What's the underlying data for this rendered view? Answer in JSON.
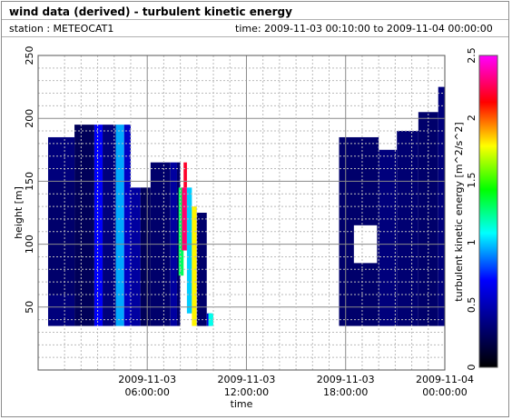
{
  "header": {
    "title": "wind data (derived) - turbulent kinetic energy",
    "station": "station : METEOCAT1",
    "time_range": "time: 2009-11-03 00:10:00 to 2009-11-04 00:00:00"
  },
  "chart_data": {
    "type": "heatmap",
    "xlabel": "time",
    "ylabel": "height [m]",
    "colorbar_label": "turbulent kinetic energy [m^2/s^2]",
    "x_range_hours": [
      -0.6,
      24
    ],
    "ylim": [
      0,
      250
    ],
    "grid": true,
    "x_ticks": [
      {
        "hour": 6,
        "label_date": "2009-11-03",
        "label_time": "06:00:00"
      },
      {
        "hour": 12,
        "label_date": "2009-11-03",
        "label_time": "12:00:00"
      },
      {
        "hour": 18,
        "label_date": "2009-11-03",
        "label_time": "18:00:00"
      },
      {
        "hour": 24,
        "label_date": "2009-11-04",
        "label_time": "00:00:00"
      }
    ],
    "y_ticks": [
      "50",
      "100",
      "150",
      "200",
      "250"
    ],
    "colorbar": {
      "range": [
        0,
        2.5
      ],
      "ticks": [
        "0",
        "0.5",
        "1",
        "1.5",
        "2",
        "2.5"
      ],
      "colormap": [
        "#000000",
        "#00007f",
        "#0000ff",
        "#00ffff",
        "#00ff00",
        "#ffff00",
        "#ff0000",
        "#ff00ff"
      ]
    },
    "cells": [
      {
        "t": [
          0.0,
          1.6
        ],
        "h": [
          35,
          185
        ],
        "v": 0.35
      },
      {
        "t": [
          0.0,
          1.6
        ],
        "h": [
          60,
          150
        ],
        "v": 0.3
      },
      {
        "t": [
          1.6,
          2.8
        ],
        "h": [
          35,
          195
        ],
        "v": 0.25
      },
      {
        "t": [
          2.8,
          3.3
        ],
        "h": [
          35,
          195
        ],
        "v": 0.7
      },
      {
        "t": [
          3.3,
          4.1
        ],
        "h": [
          35,
          195
        ],
        "v": 0.35
      },
      {
        "t": [
          4.1,
          4.6
        ],
        "h": [
          35,
          195
        ],
        "v": 0.95
      },
      {
        "t": [
          4.6,
          5.0
        ],
        "h": [
          35,
          195
        ],
        "v": 0.55
      },
      {
        "t": [
          5.0,
          5.6
        ],
        "h": [
          35,
          145
        ],
        "v": 0.45
      },
      {
        "t": [
          5.6,
          6.2
        ],
        "h": [
          35,
          145
        ],
        "v": 0.25
      },
      {
        "t": [
          6.2,
          7.4
        ],
        "h": [
          35,
          165
        ],
        "v": 0.3
      },
      {
        "t": [
          7.4,
          7.8
        ],
        "h": [
          35,
          165
        ],
        "v": 0.45
      },
      {
        "t": [
          7.8,
          8.0
        ],
        "h": [
          35,
          165
        ],
        "v": 0.3
      },
      {
        "t": [
          7.9,
          8.2
        ],
        "h": [
          75,
          145
        ],
        "v": 1.3
      },
      {
        "t": [
          8.1,
          8.4
        ],
        "h": [
          95,
          145
        ],
        "v": 2.3
      },
      {
        "t": [
          8.2,
          8.4
        ],
        "h": [
          145,
          165
        ],
        "v": 2.2
      },
      {
        "t": [
          8.4,
          8.7
        ],
        "h": [
          45,
          145
        ],
        "v": 1.0
      },
      {
        "t": [
          8.7,
          9.0
        ],
        "h": [
          35,
          130
        ],
        "v": 1.8
      },
      {
        "t": [
          9.0,
          9.6
        ],
        "h": [
          35,
          125
        ],
        "v": 0.3
      },
      {
        "t": [
          9.6,
          9.9
        ],
        "h": [
          35,
          45
        ],
        "v": 0.6
      },
      {
        "t": [
          9.7,
          10.0
        ],
        "h": [
          35,
          45
        ],
        "v": 1.1
      },
      {
        "t": [
          17.6,
          20.0
        ],
        "h": [
          35,
          185
        ],
        "v": 0.3
      },
      {
        "t": [
          20.0,
          21.1
        ],
        "h": [
          35,
          175
        ],
        "v": 0.35
      },
      {
        "t": [
          21.1,
          22.4
        ],
        "h": [
          35,
          190
        ],
        "v": 0.32
      },
      {
        "t": [
          22.4,
          23.6
        ],
        "h": [
          35,
          205
        ],
        "v": 0.3
      },
      {
        "t": [
          23.6,
          24.0
        ],
        "h": [
          35,
          225
        ],
        "v": 0.35
      }
    ],
    "gaps": [
      {
        "t": [
          -0.6,
          0.0
        ],
        "h": [
          0,
          250
        ]
      },
      {
        "t": [
          10.0,
          17.6
        ],
        "h": [
          0,
          250
        ]
      },
      {
        "t": [
          18.5,
          19.9
        ],
        "h": [
          85,
          115
        ]
      },
      {
        "t": [
          17.5,
          18.0
        ],
        "h": [
          0,
          35
        ]
      }
    ]
  }
}
